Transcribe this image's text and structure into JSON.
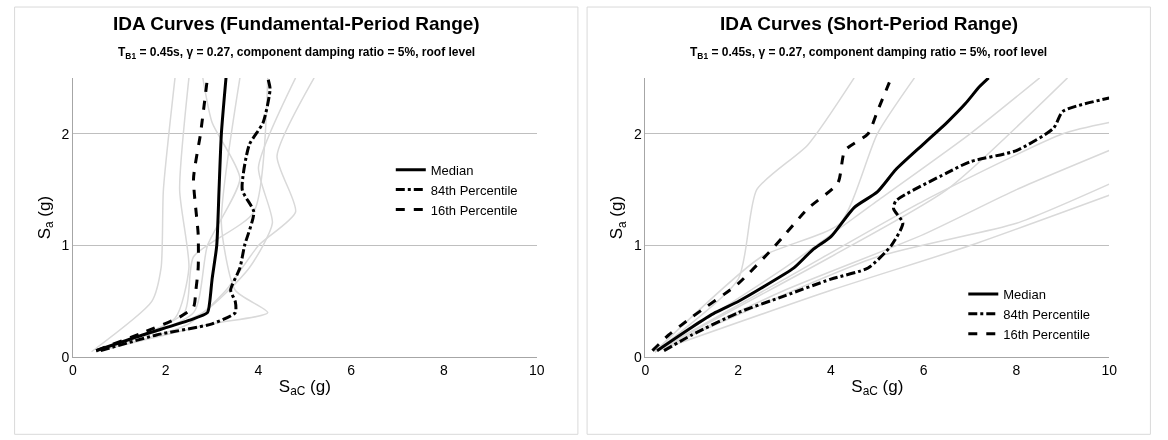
{
  "chart_data": [
    {
      "type": "line",
      "title": "IDA Curves (Fundamental-Period Range)",
      "subtitle": "T$_{B1}$ = 0.45s, γ = 0.27, component damping ratio = 5%, roof level",
      "xlabel": "S$_{aC}$ (g)",
      "ylabel": "S$_{a}$ (g)",
      "xlim": [
        0,
        10
      ],
      "xticks": [
        0,
        2,
        4,
        6,
        8,
        10
      ],
      "ylim": [
        0,
        2.5
      ],
      "yticks": [
        0,
        1,
        2
      ],
      "grid": "y",
      "legend": "right",
      "series": [
        {
          "color": "#d9d9d9",
          "x": [
            0.4,
            1.7,
            1.9,
            1.95,
            2.2
          ],
          "values": [
            0.05,
            0.5,
            0.8,
            1.5,
            2.5
          ]
        },
        {
          "color": "#d9d9d9",
          "x": [
            0.5,
            3,
            4.2,
            3.5,
            3.2,
            3.6
          ],
          "values": [
            0.05,
            0.3,
            0.4,
            0.6,
            1.2,
            2.5
          ]
        },
        {
          "color": "#d9d9d9",
          "x": [
            0.5,
            2.5,
            3.3,
            4,
            4.8,
            4.4,
            5.2
          ],
          "values": [
            0.05,
            0.3,
            0.6,
            1,
            1.3,
            1.8,
            2.5
          ]
        },
        {
          "color": "#d9d9d9",
          "x": [
            0.5,
            2.2,
            2.5,
            2.3,
            2.5
          ],
          "values": [
            0.05,
            0.35,
            0.8,
            1.5,
            2.5
          ]
        },
        {
          "color": "#d9d9d9",
          "x": [
            0.5,
            2.8,
            3.8,
            4.3,
            4.0,
            4.8
          ],
          "values": [
            0.05,
            0.4,
            0.8,
            1.2,
            1.7,
            2.5
          ]
        },
        {
          "color": "#d9d9d9",
          "x": [
            0.5,
            2.6,
            2.9,
            3.6,
            3.0,
            2.8
          ],
          "values": [
            0.05,
            0.4,
            1.0,
            1.6,
            2.1,
            2.5
          ]
        },
        {
          "color": "#d9d9d9",
          "x": [
            0.5,
            2.4,
            2.6,
            3.9,
            4.2
          ],
          "values": [
            0.05,
            0.4,
            0.9,
            1.3,
            2.5
          ]
        },
        {
          "name": "Median",
          "color": "#000000",
          "line_style": "solid",
          "x": [
            0.5,
            1.5,
            2.5,
            2.9,
            2.95,
            3.0,
            3.1,
            3.15,
            3.2,
            3.3
          ],
          "values": [
            0.06,
            0.2,
            0.33,
            0.4,
            0.5,
            0.7,
            1.0,
            1.5,
            2.0,
            2.5
          ]
        },
        {
          "name": "84th Percentile",
          "color": "#000000",
          "line_style": "dashdot",
          "x": [
            0.6,
            1.8,
            3.0,
            3.5,
            3.5,
            3.4,
            3.6,
            3.7,
            3.9,
            3.65,
            3.8,
            4.1,
            4.25,
            4.2
          ],
          "values": [
            0.06,
            0.2,
            0.3,
            0.4,
            0.5,
            0.6,
            0.8,
            1.0,
            1.3,
            1.5,
            1.9,
            2.1,
            2.4,
            2.5
          ]
        },
        {
          "name": "16th Percentile",
          "color": "#000000",
          "line_style": "dashed",
          "x": [
            0.5,
            1.5,
            2.3,
            2.6,
            2.65,
            2.7,
            2.7,
            2.6,
            2.75,
            2.9
          ],
          "values": [
            0.06,
            0.22,
            0.36,
            0.45,
            0.6,
            0.8,
            1.1,
            1.6,
            2.0,
            2.5
          ]
        }
      ]
    },
    {
      "type": "line",
      "title": "IDA Curves (Short-Period Range)",
      "subtitle": "T$_{B1}$ = 0.45s, γ = 0.27, component damping ratio = 5%, roof level",
      "xlabel": "S$_{aC}$ (g)",
      "ylabel": "S$_{a}$ (g)",
      "xlim": [
        0,
        10
      ],
      "xticks": [
        0,
        2,
        4,
        6,
        8,
        10
      ],
      "ylim": [
        0,
        2.5
      ],
      "yticks": [
        0,
        1,
        2
      ],
      "grid": "y",
      "legend": "bottom right",
      "series": [
        {
          "color": "#d9d9d9",
          "x": [
            0.2,
            3,
            6,
            8,
            10
          ],
          "values": [
            0.05,
            0.6,
            1.1,
            1.5,
            1.85
          ]
        },
        {
          "color": "#d9d9d9",
          "x": [
            0.2,
            4,
            7,
            10
          ],
          "values": [
            0.05,
            0.6,
            1.0,
            1.45
          ]
        },
        {
          "color": "#d9d9d9",
          "x": [
            0.2,
            2,
            2.4,
            3.5,
            4.5
          ],
          "values": [
            0.05,
            0.7,
            1.5,
            1.9,
            2.5
          ]
        },
        {
          "color": "#d9d9d9",
          "x": [
            0.2,
            3,
            5,
            7,
            8.5
          ],
          "values": [
            0.05,
            0.8,
            1.4,
            2.0,
            2.5
          ]
        },
        {
          "color": "#d9d9d9",
          "x": [
            0.2,
            2.5,
            4.2,
            5,
            5.8
          ],
          "values": [
            0.05,
            0.9,
            1.2,
            2.0,
            2.5
          ]
        },
        {
          "color": "#d9d9d9",
          "x": [
            0.2,
            3,
            6,
            9,
            10
          ],
          "values": [
            0.05,
            0.7,
            1.4,
            2.0,
            2.1
          ]
        },
        {
          "color": "#d9d9d9",
          "x": [
            0.2,
            4,
            6.5,
            9.1
          ],
          "values": [
            0.05,
            0.9,
            1.5,
            2.5
          ]
        },
        {
          "color": "#d9d9d9",
          "x": [
            0.2,
            5,
            8,
            10
          ],
          "values": [
            0.05,
            0.9,
            1.2,
            1.55
          ]
        },
        {
          "name": "Median",
          "color": "#000000",
          "line_style": "solid",
          "x": [
            0.25,
            1,
            1.5,
            2,
            2.5,
            3.2,
            3.6,
            4,
            4.5,
            5,
            5.4,
            6,
            6.5,
            6.9,
            7.2,
            7.4
          ],
          "values": [
            0.06,
            0.27,
            0.4,
            0.5,
            0.62,
            0.8,
            0.96,
            1.08,
            1.34,
            1.48,
            1.68,
            1.91,
            2.1,
            2.27,
            2.42,
            2.5
          ]
        },
        {
          "name": "84th Percentile",
          "color": "#000000",
          "line_style": "dashdot",
          "x": [
            0.4,
            1,
            2,
            3,
            4,
            4.8,
            5.3,
            5.55,
            5.35,
            5.4,
            6.5,
            7,
            8,
            8.8,
            9,
            10
          ],
          "values": [
            0.06,
            0.2,
            0.4,
            0.55,
            0.7,
            0.8,
            1.0,
            1.2,
            1.33,
            1.4,
            1.65,
            1.75,
            1.85,
            2.05,
            2.2,
            2.32
          ]
        },
        {
          "name": "16th Percentile",
          "color": "#000000",
          "line_style": "dashed",
          "x": [
            0.15,
            0.5,
            1,
            2,
            2.8,
            3.5,
            4.15,
            4.3,
            4.8,
            5.0,
            5.3
          ],
          "values": [
            0.06,
            0.2,
            0.36,
            0.66,
            1.0,
            1.33,
            1.56,
            1.85,
            2.0,
            2.2,
            2.5
          ]
        }
      ]
    }
  ]
}
